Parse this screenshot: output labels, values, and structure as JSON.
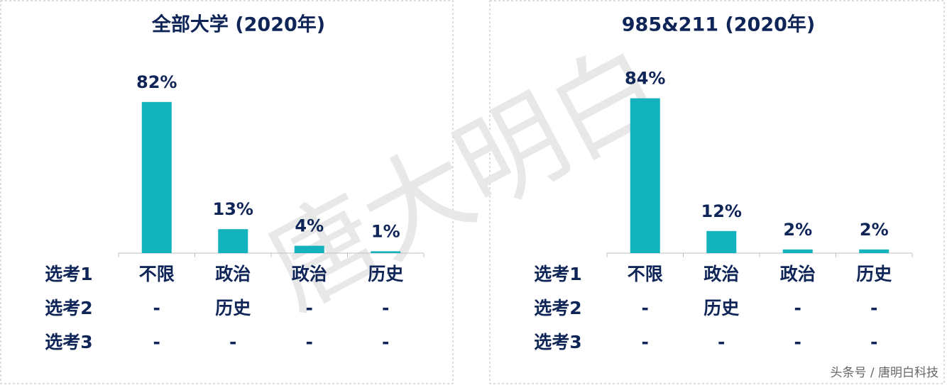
{
  "chart_data": [
    {
      "type": "bar",
      "title": "全部大学 (2020年)",
      "color": "#12b3bd",
      "values": [
        82,
        13,
        4,
        1
      ],
      "value_labels": [
        "82%",
        "13%",
        "4%",
        "1%"
      ],
      "category_rows": [
        {
          "label": "选考1",
          "cells": [
            "不限",
            "政治",
            "政治",
            "历史"
          ]
        },
        {
          "label": "选考2",
          "cells": [
            "-",
            "历史",
            "-",
            "-"
          ]
        },
        {
          "label": "选考3",
          "cells": [
            "-",
            "-",
            "-",
            "-"
          ]
        }
      ]
    },
    {
      "type": "bar",
      "title": "985&211 (2020年)",
      "color": "#12b3bd",
      "values": [
        84,
        12,
        2,
        2
      ],
      "value_labels": [
        "84%",
        "12%",
        "2%",
        "2%"
      ],
      "category_rows": [
        {
          "label": "选考1",
          "cells": [
            "不限",
            "政治",
            "政治",
            "历史"
          ]
        },
        {
          "label": "选考2",
          "cells": [
            "-",
            "历史",
            "-",
            "-"
          ]
        },
        {
          "label": "选考3",
          "cells": [
            "-",
            "-",
            "-",
            "-"
          ]
        }
      ]
    }
  ],
  "watermark": "唐大明白",
  "footer": "头条号 / 唐明白科技"
}
